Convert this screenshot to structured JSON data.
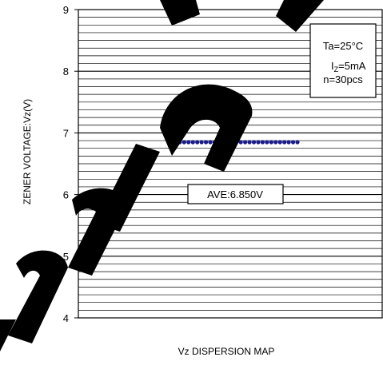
{
  "chart_data": {
    "type": "scatter",
    "title": "",
    "xlabel": "Vz DISPERSION MAP",
    "ylabel": "ZENER VOLTAGE:Vz(V)",
    "ylim": [
      4,
      9
    ],
    "yticks": [
      "4",
      "5",
      "6",
      "7",
      "8",
      "9"
    ],
    "x_range": [
      0,
      31
    ],
    "grid": "horizontal",
    "conditions": {
      "ta": "Ta=25°C",
      "iz_main": "I",
      "iz_sub": "Z",
      "iz_rest": "=5mA",
      "n": "n=30pcs"
    },
    "average_label": "AVE:6.850V",
    "series": [
      {
        "x": [
          1,
          2,
          3,
          4,
          5,
          6,
          7,
          8,
          9,
          10,
          11,
          12,
          13,
          14,
          15,
          16,
          17,
          18,
          19,
          20,
          21,
          22,
          23,
          24,
          25,
          26,
          27,
          28,
          29,
          30
        ],
        "values": [
          6.85,
          6.85,
          6.85,
          6.85,
          6.85,
          6.85,
          6.85,
          6.85,
          6.85,
          6.85,
          6.85,
          6.85,
          6.85,
          6.85,
          6.85,
          6.85,
          6.85,
          6.85,
          6.85,
          6.85,
          6.85,
          6.85,
          6.85,
          6.85,
          6.85,
          6.85,
          6.85,
          6.85,
          6.85,
          6.85
        ],
        "color": "#1a1a8c"
      }
    ],
    "colors": {
      "grid": "#000000",
      "frame": "#000000",
      "points": "#1a1a8c",
      "watermark": "#000000"
    }
  }
}
